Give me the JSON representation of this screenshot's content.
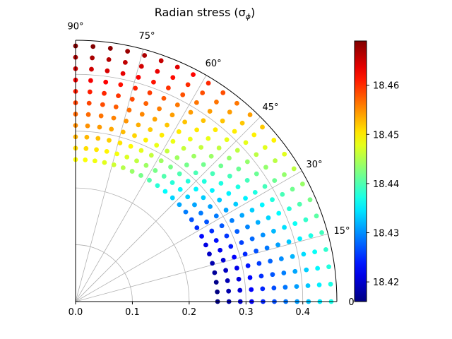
{
  "chart_data": {
    "type": "scatter",
    "projection": "polar-quadrant",
    "title": "Radian stress (σ",
    "title_subscript": "ϕ",
    "title_close": ")",
    "theta_ticks": [
      "0°",
      "15°",
      "30°",
      "45°",
      "60°",
      "75°",
      "90°"
    ],
    "theta_tick_values_deg": [
      0,
      15,
      30,
      45,
      60,
      75,
      90
    ],
    "r_ticks": [
      "0.0",
      "0.1",
      "0.2",
      "0.3",
      "0.4"
    ],
    "r_tick_values": [
      0.0,
      0.1,
      0.2,
      0.3,
      0.4
    ],
    "r_lim": [
      0,
      0.46
    ],
    "theta_lim_deg": [
      0,
      90
    ],
    "grid": true,
    "colormap": "jet",
    "colorbar": {
      "range": [
        18.416,
        18.469
      ],
      "ticks": [
        "18.42",
        "18.43",
        "18.44",
        "18.45",
        "18.46"
      ],
      "tick_values": [
        18.42,
        18.43,
        18.44,
        18.45,
        18.46
      ],
      "placement": "right"
    },
    "field": {
      "description_none": "",
      "r_range": [
        0.25,
        0.45
      ],
      "r_count": 11,
      "theta_count": 24,
      "value_equator_inner": 18.416,
      "value_equator_outer": 18.437,
      "value_pole_inner": 18.449,
      "value_pole_outer": 18.469
    }
  }
}
